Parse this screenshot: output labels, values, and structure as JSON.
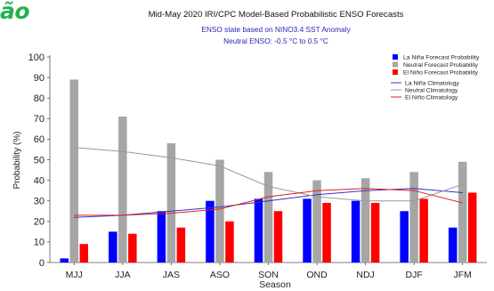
{
  "corner_text": "ão",
  "chart_data": {
    "type": "bar",
    "title": "Mid-May 2020 IRI/CPC Model-Based Probabilistic ENSO Forecasts",
    "subtitle_1": "ENSO state based on NINO3.4 SST Anomaly",
    "subtitle_2": "Neutral ENSO: -0.5 °C to 0.5 °C",
    "xlabel": "Season",
    "ylabel": "Probability (%)",
    "ylim": [
      0,
      100
    ],
    "yticks": [
      "0",
      "10",
      "20",
      "30",
      "40",
      "50",
      "60",
      "70",
      "80",
      "90",
      "100"
    ],
    "categories": [
      "MJJ",
      "JJA",
      "JAS",
      "ASO",
      "SON",
      "OND",
      "NDJ",
      "DJF",
      "JFM"
    ],
    "grid": false,
    "legend_position": "top-right",
    "series": [
      {
        "name": "La Niña Forecast Probability",
        "color": "#0000ff",
        "values": [
          2,
          15,
          25,
          30,
          31,
          31,
          30,
          25,
          17
        ]
      },
      {
        "name": "Neutral Forecast Probability",
        "color": "#a6a6a6",
        "values": [
          89,
          71,
          58,
          50,
          44,
          40,
          41,
          44,
          49
        ]
      },
      {
        "name": "El Niño Forecast Probability",
        "color": "#ff0000",
        "values": [
          9,
          14,
          17,
          20,
          25,
          29,
          29,
          31,
          34
        ]
      }
    ],
    "lines": [
      {
        "name": "La Niña Climatology",
        "color": "#3333cc",
        "values": [
          22,
          23,
          25,
          27,
          30,
          33,
          35,
          36,
          34
        ]
      },
      {
        "name": "Neutral Climatology",
        "color": "#999999",
        "values": [
          56,
          54,
          51,
          47,
          37,
          32,
          30,
          30,
          38
        ]
      },
      {
        "name": "El Niño Climatology",
        "color": "#e02020",
        "values": [
          23,
          23,
          24,
          26,
          32,
          35,
          36,
          35,
          29
        ]
      }
    ]
  }
}
